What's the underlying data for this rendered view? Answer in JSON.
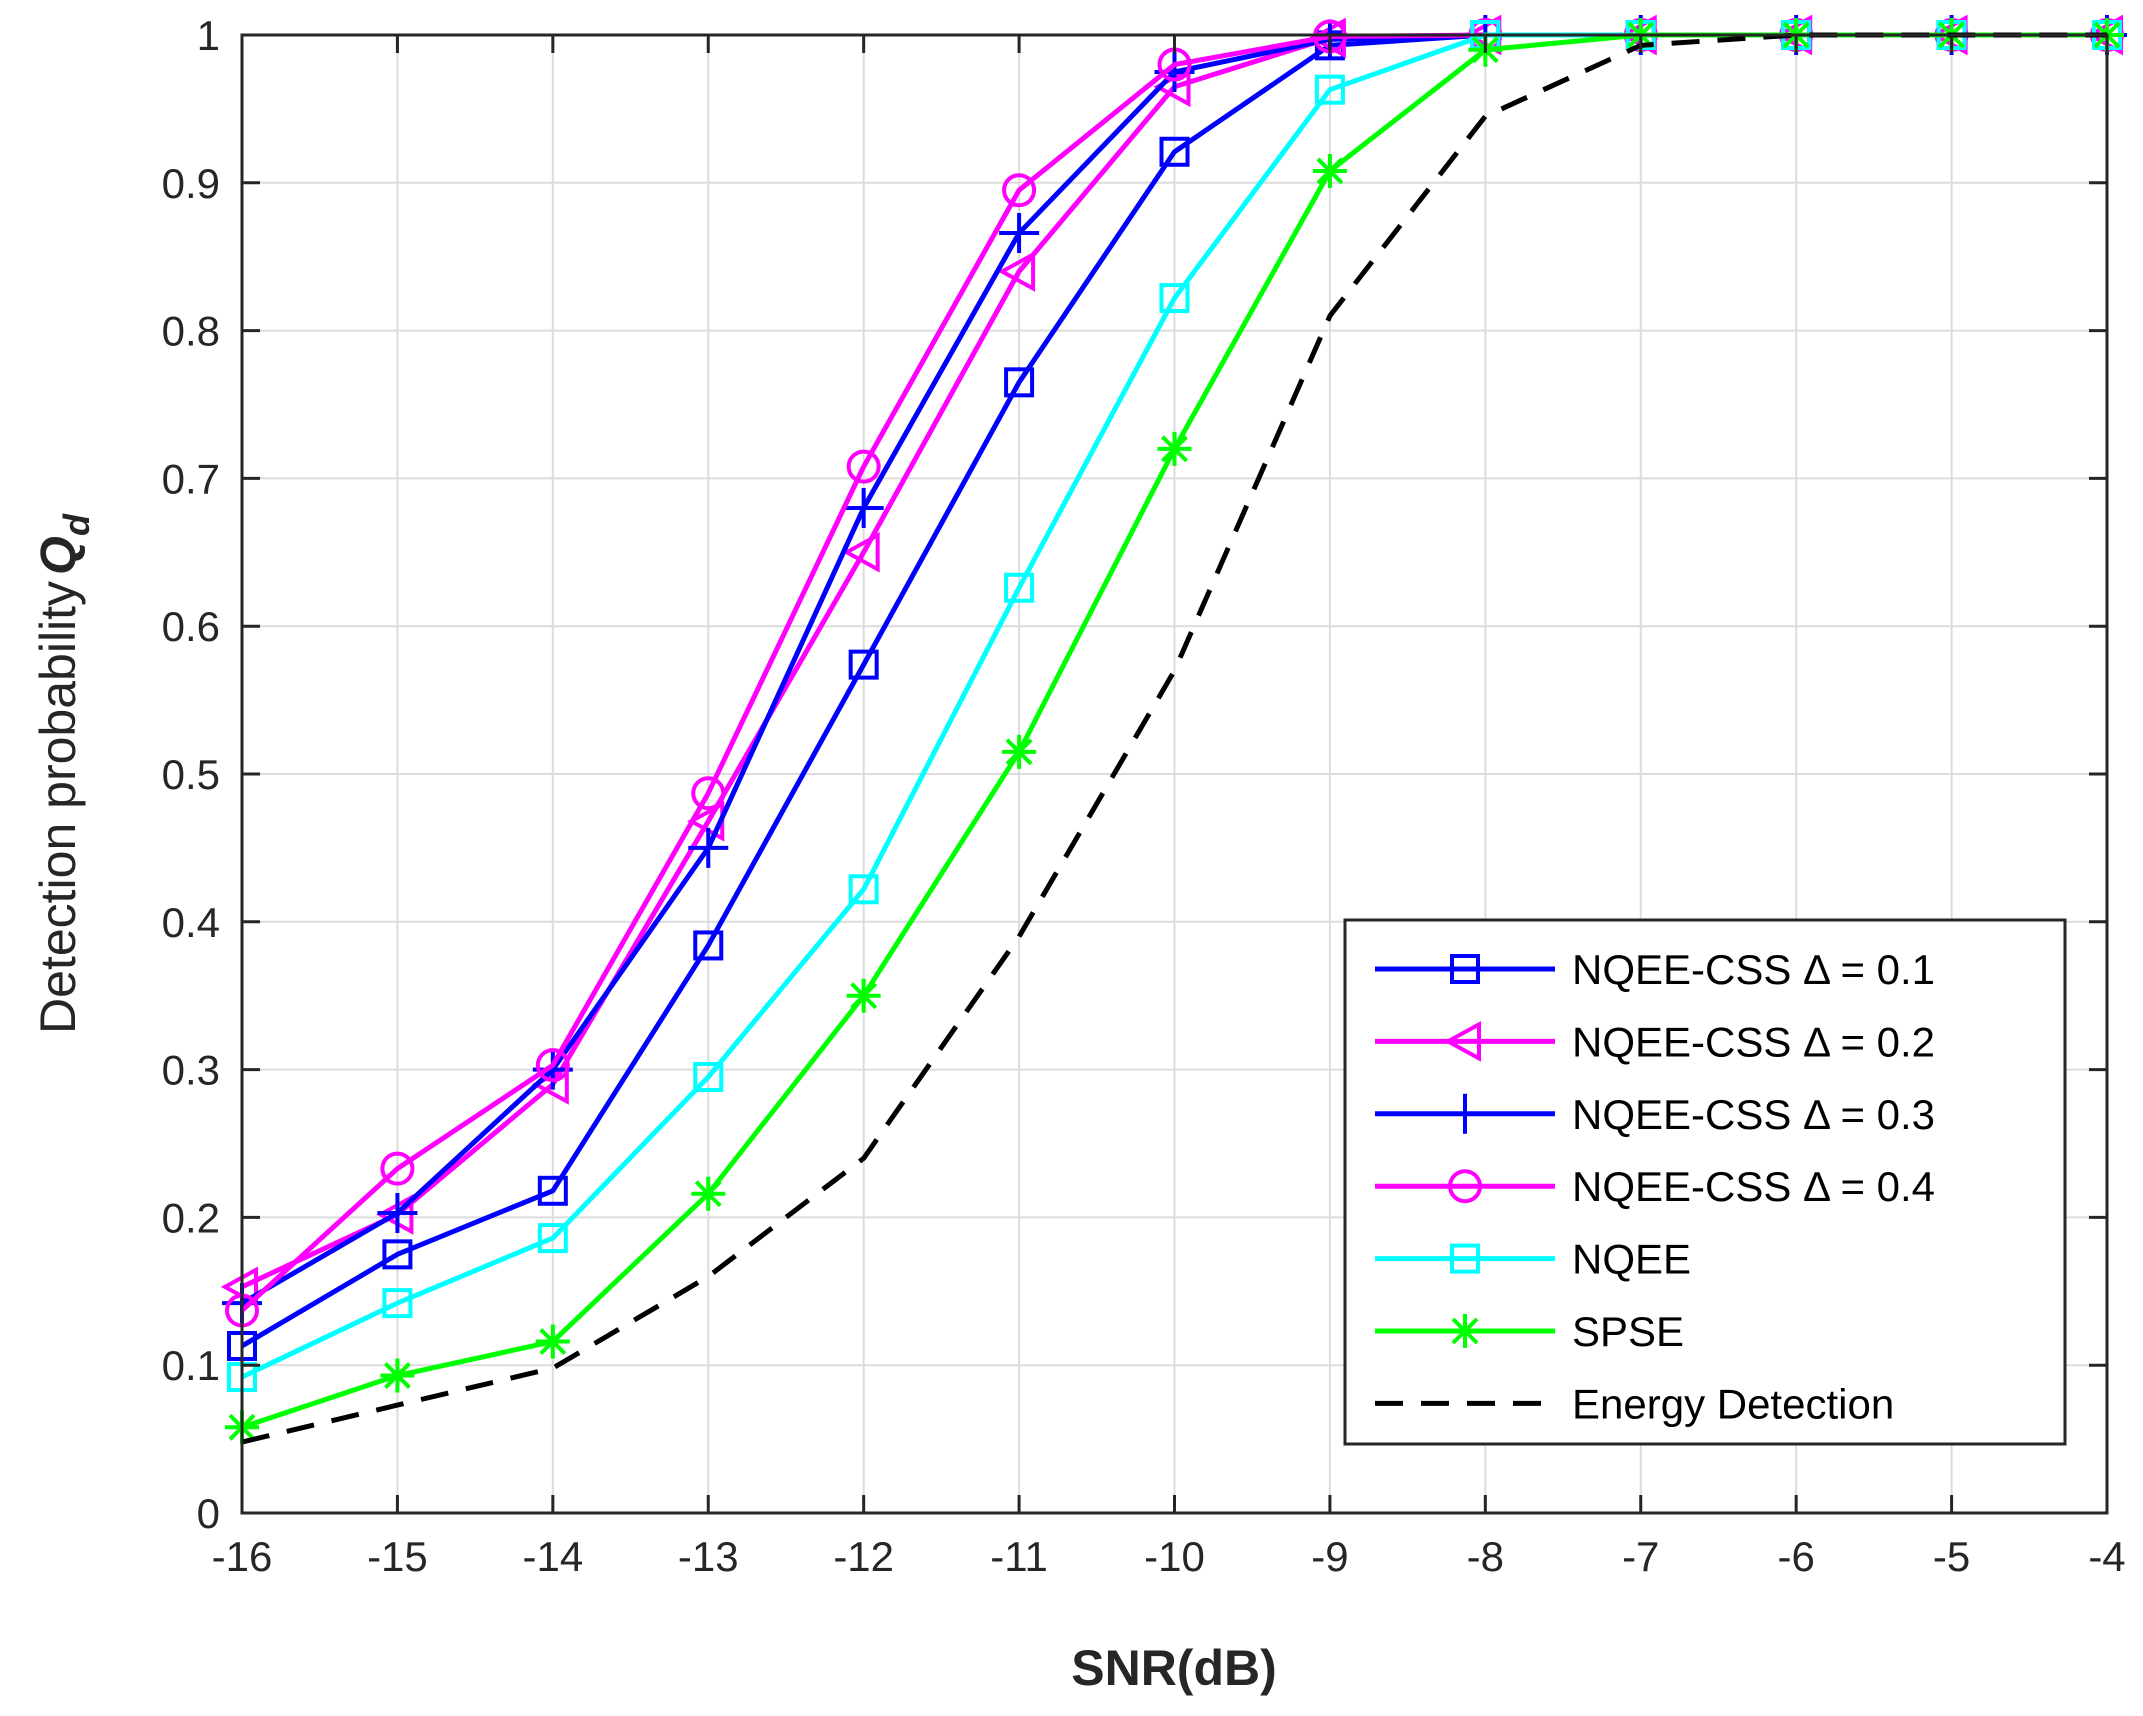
{
  "chart_data": {
    "type": "line",
    "title": "",
    "xlabel": "SNR(dB)",
    "ylabel": "Detection probability",
    "ylabel_symbol": "Q",
    "ylabel_subscript": "d",
    "xlim": [
      -16,
      -4
    ],
    "ylim": [
      0,
      1
    ],
    "grid": true,
    "legend_position": "bottom-right",
    "x_ticks": [
      -16,
      -15,
      -14,
      -13,
      -12,
      -11,
      -10,
      -9,
      -8,
      -7,
      -6,
      -5,
      -4
    ],
    "x_tick_labels": [
      "-16",
      "-15",
      "-14",
      "-13",
      "-12",
      "-11",
      "-10",
      "-9",
      "-8",
      "-7",
      "-6",
      "-5",
      "-4"
    ],
    "y_ticks": [
      0,
      0.1,
      0.2,
      0.3,
      0.4,
      0.5,
      0.6,
      0.7,
      0.8,
      0.9,
      1
    ],
    "y_tick_labels": [
      "0",
      "0.1",
      "0.2",
      "0.3",
      "0.4",
      "0.5",
      "0.6",
      "0.7",
      "0.8",
      "0.9",
      "1"
    ],
    "x": [
      -16,
      -15,
      -14,
      -13,
      -12,
      -11,
      -10,
      -9,
      -8,
      -7,
      -6,
      -5,
      -4
    ],
    "series": [
      {
        "name": "NQEE-CSS Δ = 0.1",
        "color": "#0000ff",
        "marker": "square",
        "dashed": false,
        "values": [
          0.113,
          0.175,
          0.218,
          0.384,
          0.574,
          0.765,
          0.921,
          0.993,
          1,
          1,
          1,
          1,
          1
        ]
      },
      {
        "name": "NQEE-CSS Δ = 0.2",
        "color": "#ff00ff",
        "marker": "triangle-left",
        "dashed": false,
        "values": [
          0.153,
          0.202,
          0.29,
          0.468,
          0.65,
          0.84,
          0.965,
          0.998,
          1,
          1,
          1,
          1,
          1
        ]
      },
      {
        "name": "NQEE-CSS Δ = 0.3",
        "color": "#0000ff",
        "marker": "plus",
        "dashed": false,
        "values": [
          0.142,
          0.203,
          0.3,
          0.45,
          0.68,
          0.866,
          0.975,
          0.997,
          1,
          1,
          1,
          1,
          1
        ]
      },
      {
        "name": "NQEE-CSS Δ = 0.4",
        "color": "#ff00ff",
        "marker": "circle",
        "dashed": false,
        "values": [
          0.137,
          0.233,
          0.303,
          0.487,
          0.708,
          0.895,
          0.98,
          0.999,
          1,
          1,
          1,
          1,
          1
        ]
      },
      {
        "name": "NQEE",
        "color": "#00ffff",
        "marker": "square",
        "dashed": false,
        "values": [
          0.092,
          0.142,
          0.186,
          0.295,
          0.422,
          0.626,
          0.822,
          0.963,
          1,
          1,
          1,
          1,
          1
        ]
      },
      {
        "name": "SPSE",
        "color": "#00ff00",
        "marker": "asterisk",
        "dashed": false,
        "values": [
          0.058,
          0.093,
          0.116,
          0.216,
          0.35,
          0.515,
          0.72,
          0.908,
          0.99,
          1,
          1,
          1,
          1
        ]
      },
      {
        "name": "Energy Detection",
        "color": "#000000",
        "marker": "none",
        "dashed": true,
        "values": [
          0.048,
          0.073,
          0.098,
          0.16,
          0.24,
          0.39,
          0.57,
          0.81,
          0.945,
          0.993,
          1,
          1,
          1
        ]
      }
    ]
  }
}
